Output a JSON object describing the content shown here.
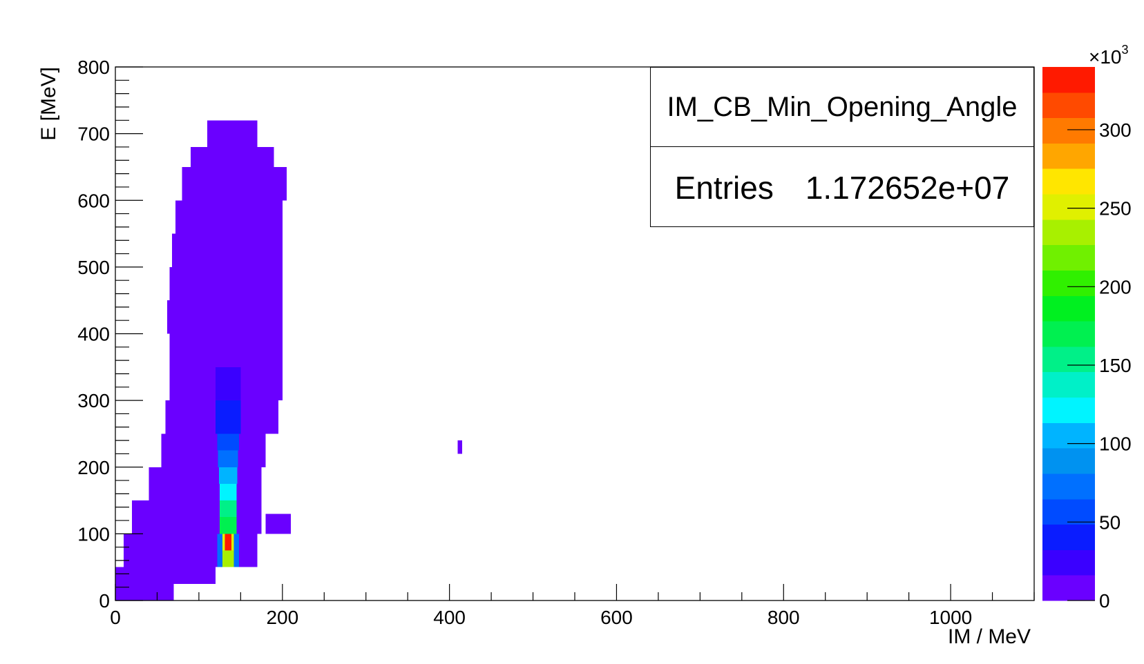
{
  "chart_data": {
    "type": "heatmap",
    "title": "IM_CB_Min_Opening_Angle",
    "xlabel": "IM / MeV",
    "ylabel": "E [MeV]",
    "xlim": [
      0,
      1100
    ],
    "ylim": [
      0,
      800
    ],
    "x_ticks": [
      0,
      200,
      400,
      600,
      800,
      1000
    ],
    "y_ticks": [
      0,
      100,
      200,
      300,
      400,
      500,
      600,
      700,
      800
    ],
    "colorbar": {
      "range": [
        0,
        340000
      ],
      "multiplier_label": "×10",
      "multiplier_exponent": "3",
      "ticks": [
        0,
        50,
        100,
        150,
        200,
        250,
        300
      ],
      "colors": [
        "#6a00ff",
        "#3a00ff",
        "#0a1cff",
        "#004bff",
        "#0070ff",
        "#0092f0",
        "#00b4ff",
        "#00f4ff",
        "#00f0c8",
        "#00f088",
        "#00f050",
        "#00f020",
        "#30f000",
        "#70f000",
        "#a8f000",
        "#e0f000",
        "#ffe600",
        "#ffa600",
        "#ff7a00",
        "#ff4a00",
        "#ff1a00"
      ]
    },
    "grid": false,
    "legend": "none",
    "stats": {
      "name": "IM_CB_Min_Opening_Angle",
      "entries_label": "Entries",
      "entries_value": "1.172652e+07"
    },
    "bands": [
      {
        "y": [
          0,
          25
        ],
        "x": [
          0,
          70
        ],
        "level": 0.05
      },
      {
        "y": [
          25,
          50
        ],
        "x": [
          0,
          120
        ],
        "level": 0.06
      },
      {
        "y": [
          50,
          100
        ],
        "x": [
          10,
          170
        ],
        "level": 0.07
      },
      {
        "y": [
          100,
          150
        ],
        "x": [
          20,
          175
        ],
        "level": 0.07
      },
      {
        "y": [
          100,
          130
        ],
        "x": [
          180,
          210
        ],
        "level": 0.05
      },
      {
        "y": [
          150,
          200
        ],
        "x": [
          40,
          175
        ],
        "level": 0.06
      },
      {
        "y": [
          200,
          250
        ],
        "x": [
          55,
          180
        ],
        "level": 0.06
      },
      {
        "y": [
          250,
          300
        ],
        "x": [
          60,
          195
        ],
        "level": 0.05
      },
      {
        "y": [
          300,
          350
        ],
        "x": [
          65,
          200
        ],
        "level": 0.05
      },
      {
        "y": [
          350,
          400
        ],
        "x": [
          65,
          200
        ],
        "level": 0.04
      },
      {
        "y": [
          400,
          450
        ],
        "x": [
          62,
          200
        ],
        "level": 0.04
      },
      {
        "y": [
          450,
          500
        ],
        "x": [
          65,
          200
        ],
        "level": 0.04
      },
      {
        "y": [
          500,
          550
        ],
        "x": [
          68,
          200
        ],
        "level": 0.04
      },
      {
        "y": [
          550,
          600
        ],
        "x": [
          72,
          200
        ],
        "level": 0.04
      },
      {
        "y": [
          600,
          650
        ],
        "x": [
          80,
          205
        ],
        "level": 0.04
      },
      {
        "y": [
          650,
          680
        ],
        "x": [
          90,
          190
        ],
        "level": 0.03
      },
      {
        "y": [
          680,
          720
        ],
        "x": [
          110,
          170
        ],
        "level": 0.03
      },
      {
        "y": [
          220,
          240
        ],
        "x": [
          410,
          415
        ],
        "level": 0.02
      }
    ],
    "peak_cells": [
      {
        "x": [
          120,
          150
        ],
        "y": [
          300,
          350
        ],
        "value": 25000
      },
      {
        "x": [
          120,
          150
        ],
        "y": [
          250,
          300
        ],
        "value": 40000
      },
      {
        "x": [
          122,
          148
        ],
        "y": [
          225,
          250
        ],
        "value": 60000
      },
      {
        "x": [
          123,
          147
        ],
        "y": [
          200,
          225
        ],
        "value": 80000
      },
      {
        "x": [
          124,
          146
        ],
        "y": [
          175,
          200
        ],
        "value": 110000
      },
      {
        "x": [
          125,
          145
        ],
        "y": [
          150,
          175
        ],
        "value": 125000
      },
      {
        "x": [
          125,
          145
        ],
        "y": [
          125,
          150
        ],
        "value": 150000
      },
      {
        "x": [
          125,
          145
        ],
        "y": [
          100,
          125
        ],
        "value": 175000
      },
      {
        "x": [
          127,
          143
        ],
        "y": [
          75,
          100
        ],
        "value": 255000
      },
      {
        "x": [
          131,
          139
        ],
        "y": [
          75,
          100
        ],
        "value": 340000
      },
      {
        "x": [
          125,
          145
        ],
        "y": [
          50,
          75
        ],
        "value": 235000
      },
      {
        "x": [
          122,
          128
        ],
        "y": [
          50,
          100
        ],
        "value": 70000
      },
      {
        "x": [
          142,
          148
        ],
        "y": [
          50,
          100
        ],
        "value": 70000
      }
    ]
  }
}
